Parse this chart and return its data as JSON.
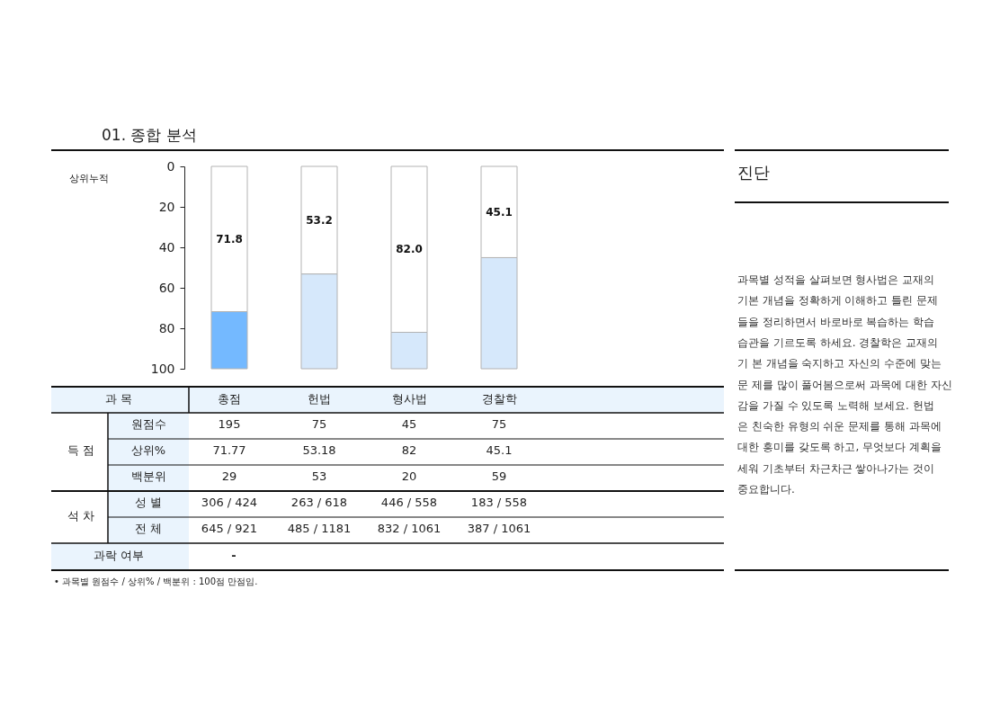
{
  "chart_data": {
    "type": "bar",
    "stacked": true,
    "title": "01. 종합 분석",
    "ylabel": "상위누적",
    "categories": [
      "총점",
      "헌법",
      "형사법",
      "경찰학"
    ],
    "series": [
      {
        "color": "#ffffff",
        "values": [
          71.8,
          53.2,
          82.0,
          45.1
        ],
        "value_labels": [
          "71.8",
          "53.2",
          "82.0",
          "45.1"
        ]
      },
      {
        "colors": [
          "#74b9ff",
          "#d6e8fb",
          "#d6e8fb",
          "#d6e8fb"
        ],
        "values": [
          28.2,
          46.8,
          18.0,
          54.9
        ]
      }
    ],
    "ylim": [
      100,
      0
    ],
    "yticks": [
      0,
      20,
      40,
      60,
      80,
      100
    ],
    "grid": false,
    "annotations": [
      "과 목",
      "득 점",
      "원점수",
      "195",
      "75",
      "45",
      "75",
      "상위%",
      "71.77",
      "53.18",
      "82",
      "45.1",
      "백분위",
      "29",
      "53",
      "20",
      "59",
      "석 차",
      "성 별",
      "306 / 424",
      "263 / 618",
      "446 / 558",
      "183 / 558",
      "전 체",
      "645 / 921",
      "485 / 1181",
      "832 / 1061",
      "387 / 1061",
      "과락 여부",
      "-",
      "• 과목별 원점수 / 상위% / 백분위 : 100점 만점임.",
      "진단",
      "과목별 성적을 살펴보면 형사법은 교재의",
      "기본 개념을 정확하게 이해하고 틀린 문제",
      "들을 정리하면서 바로바로 복습하는 학습",
      "습관을 기르도록 하세요. 경찰학은 교재의",
      "기 본 개념을 숙지하고 자신의 수준에 맞는",
      "문 제를 많이 풀어봄으로써 과목에 대한 자신",
      "감을 가질 수 있도록 노력해 보세요. 헌법",
      "은 친숙한 유형의 쉬운 문제를 통해 과목에",
      "대한 흥미를 갖도록 하고, 무엇보다 계획을",
      "세워 기초부터 차근차근 쌓아나가는 것이",
      "중요합니다."
    ]
  }
}
